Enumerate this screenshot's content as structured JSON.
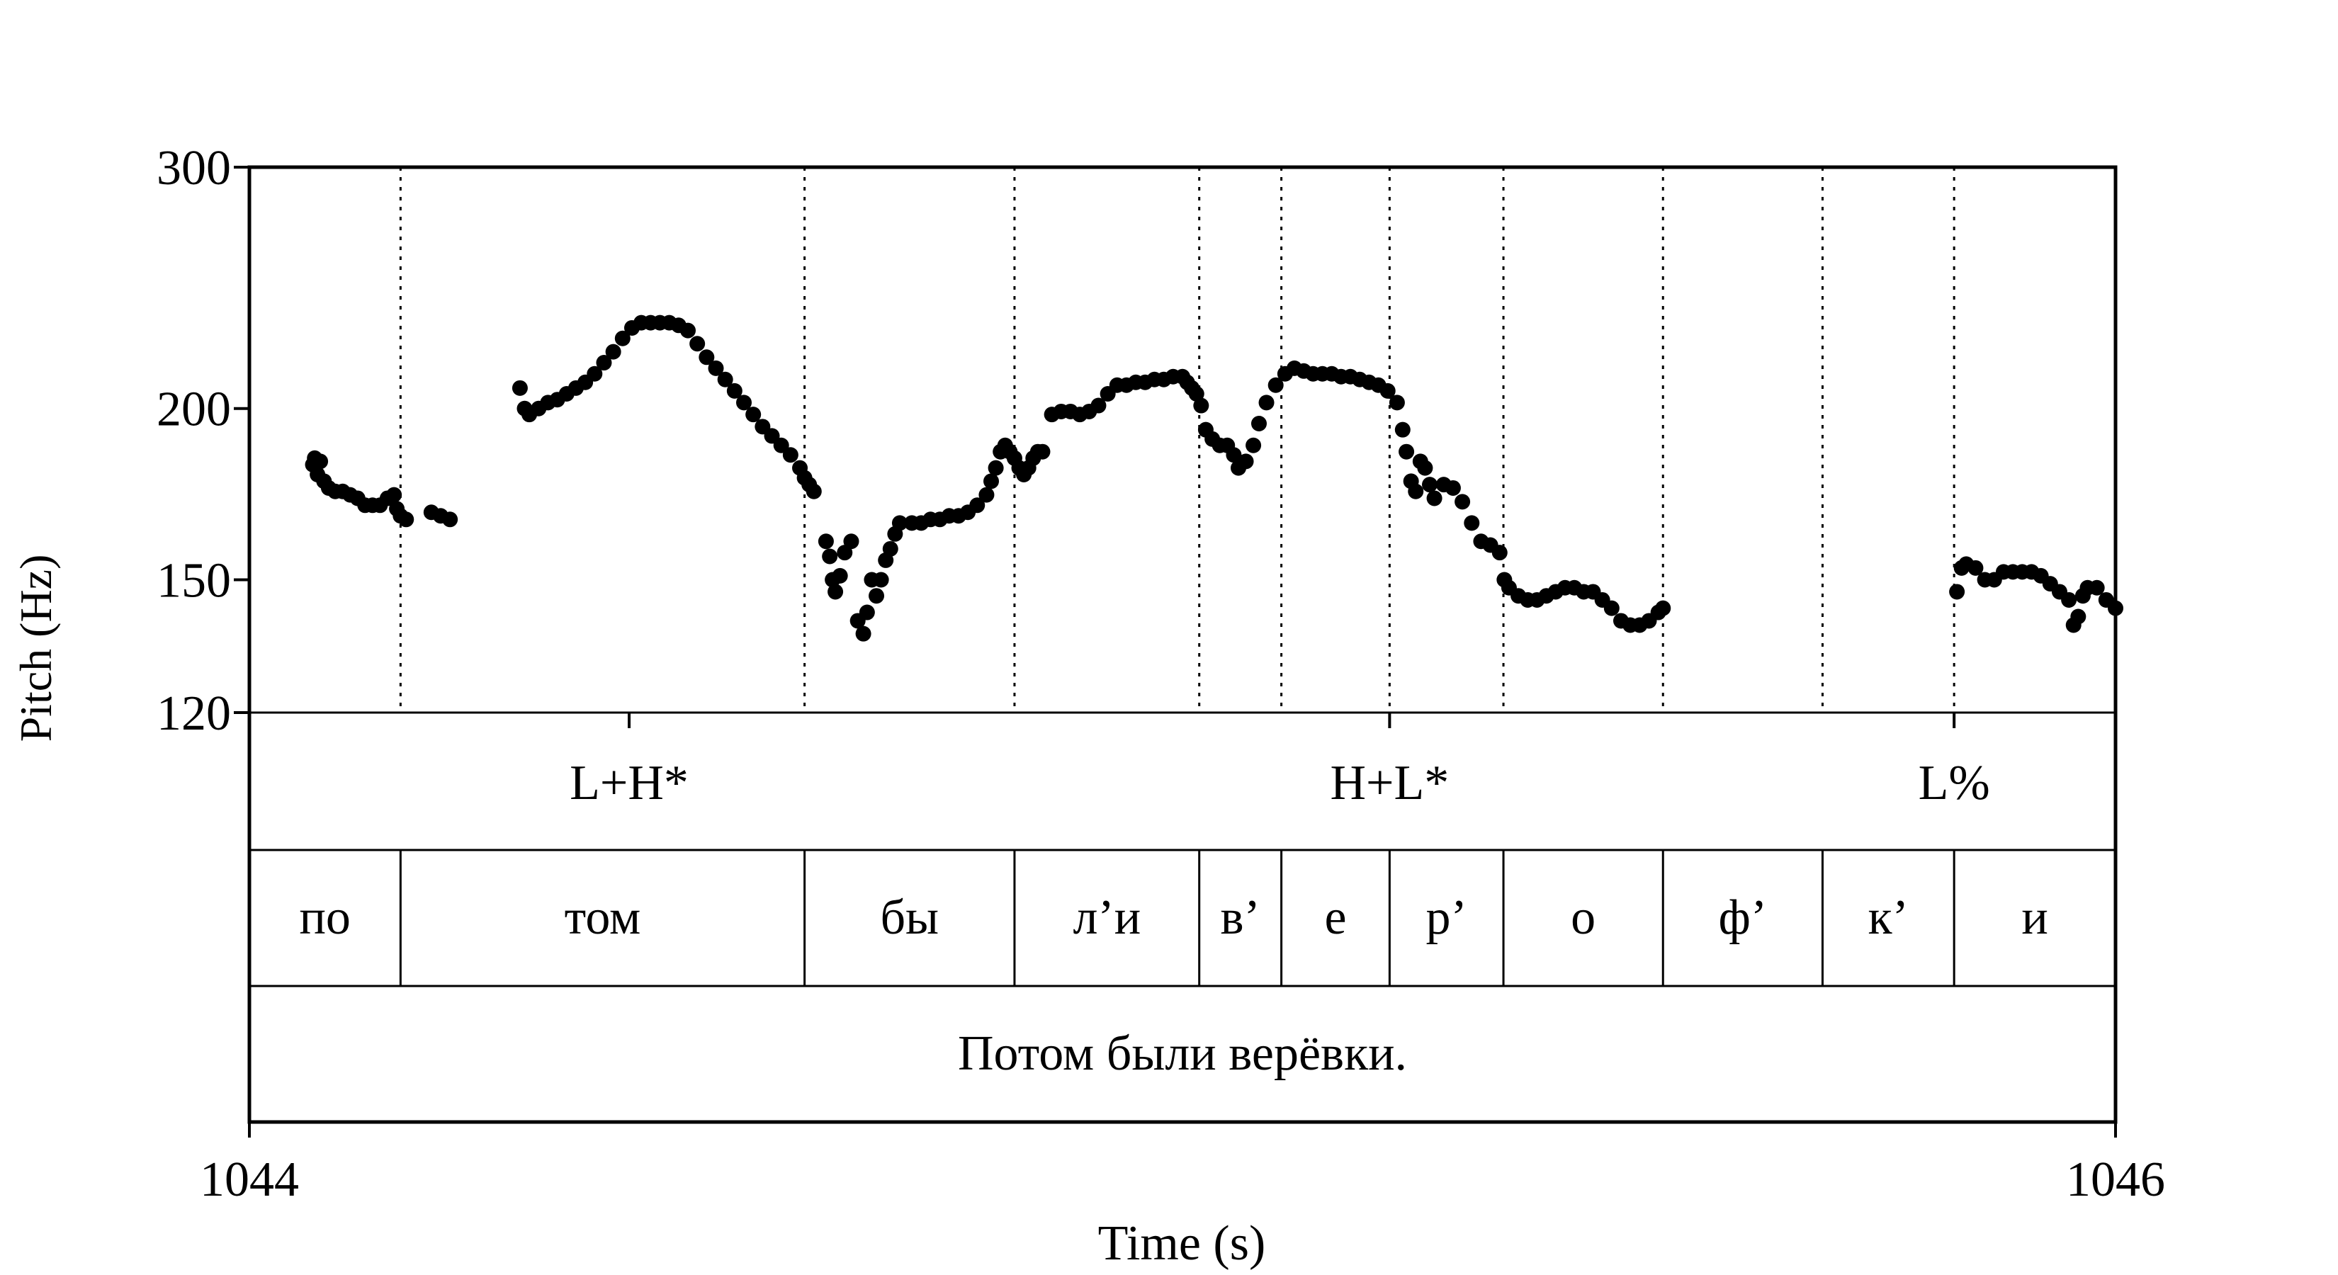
{
  "chart_data": {
    "type": "scatter",
    "title": "",
    "xlabel": "Time (s)",
    "ylabel": "Pitch (Hz)",
    "xlim": [
      1044,
      1046
    ],
    "ylim": [
      120,
      300
    ],
    "y_scale": "log",
    "x_ticks": [
      "1044",
      "1046"
    ],
    "y_ticks": [
      {
        "value": 120,
        "label": "120"
      },
      {
        "value": 150,
        "label": "150"
      },
      {
        "value": 200,
        "label": "200"
      },
      {
        "value": 300,
        "label": "300"
      }
    ],
    "grid": false,
    "boundaries": [
      1044.162,
      1044.595,
      1044.82,
      1045.018,
      1045.106,
      1045.222,
      1045.344,
      1045.515,
      1045.686,
      1045.827
    ],
    "tiers": [
      {
        "name": "tones",
        "labels": [
          {
            "time": 1044.407,
            "text": "L+H*"
          },
          {
            "time": 1045.222,
            "text": "H+L*"
          },
          {
            "time": 1045.827,
            "text": "L%"
          }
        ]
      },
      {
        "name": "segments",
        "intervals": [
          {
            "start": 1044.0,
            "end": 1044.162,
            "text": "по"
          },
          {
            "start": 1044.162,
            "end": 1044.595,
            "text": "том"
          },
          {
            "start": 1044.595,
            "end": 1044.82,
            "text": "бы"
          },
          {
            "start": 1044.82,
            "end": 1045.018,
            "text": "л’и"
          },
          {
            "start": 1045.018,
            "end": 1045.106,
            "text": "в’"
          },
          {
            "start": 1045.106,
            "end": 1045.222,
            "text": "е"
          },
          {
            "start": 1045.222,
            "end": 1045.344,
            "text": "р’"
          },
          {
            "start": 1045.344,
            "end": 1045.515,
            "text": "о"
          },
          {
            "start": 1045.515,
            "end": 1045.686,
            "text": "ф’"
          },
          {
            "start": 1045.686,
            "end": 1045.827,
            "text": "к’"
          },
          {
            "start": 1045.827,
            "end": 1046.0,
            "text": "и"
          }
        ]
      },
      {
        "name": "sentence",
        "intervals": [
          {
            "start": 1044.0,
            "end": 1046.0,
            "text": "Потом были верёвки."
          }
        ]
      }
    ],
    "series": [
      {
        "points": [
          [
            1044.068,
            182
          ],
          [
            1044.07,
            184
          ],
          [
            1044.073,
            179
          ],
          [
            1044.076,
            183
          ],
          [
            1044.08,
            177
          ],
          [
            1044.085,
            175
          ],
          [
            1044.092,
            174
          ],
          [
            1044.1,
            174
          ],
          [
            1044.108,
            173
          ],
          [
            1044.116,
            172
          ],
          [
            1044.124,
            170
          ],
          [
            1044.132,
            170
          ],
          [
            1044.14,
            170
          ],
          [
            1044.148,
            172
          ],
          [
            1044.155,
            173
          ],
          [
            1044.158,
            169
          ],
          [
            1044.162,
            167
          ],
          [
            1044.168,
            166
          ],
          [
            1044.195,
            168
          ],
          [
            1044.205,
            167
          ],
          [
            1044.215,
            166
          ],
          [
            1044.29,
            207
          ],
          [
            1044.295,
            200
          ],
          [
            1044.3,
            198
          ],
          [
            1044.31,
            200
          ],
          [
            1044.32,
            202
          ],
          [
            1044.33,
            203
          ],
          [
            1044.34,
            205
          ],
          [
            1044.35,
            207
          ],
          [
            1044.36,
            209
          ],
          [
            1044.37,
            212
          ],
          [
            1044.38,
            216
          ],
          [
            1044.39,
            220
          ],
          [
            1044.4,
            225
          ],
          [
            1044.41,
            229
          ],
          [
            1044.42,
            231
          ],
          [
            1044.43,
            231
          ],
          [
            1044.44,
            231
          ],
          [
            1044.45,
            231
          ],
          [
            1044.46,
            230
          ],
          [
            1044.47,
            228
          ],
          [
            1044.48,
            223
          ],
          [
            1044.49,
            218
          ],
          [
            1044.5,
            214
          ],
          [
            1044.51,
            210
          ],
          [
            1044.52,
            206
          ],
          [
            1044.53,
            202
          ],
          [
            1044.54,
            198
          ],
          [
            1044.55,
            194
          ],
          [
            1044.56,
            191
          ],
          [
            1044.57,
            188
          ],
          [
            1044.58,
            185
          ],
          [
            1044.59,
            181
          ],
          [
            1044.595,
            178
          ],
          [
            1044.6,
            176
          ],
          [
            1044.605,
            174
          ],
          [
            1044.618,
            160
          ],
          [
            1044.622,
            156
          ],
          [
            1044.625,
            150
          ],
          [
            1044.628,
            147
          ],
          [
            1044.633,
            151
          ],
          [
            1044.638,
            157
          ],
          [
            1044.645,
            160
          ],
          [
            1044.652,
            140
          ],
          [
            1044.658,
            137
          ],
          [
            1044.662,
            142
          ],
          [
            1044.667,
            150
          ],
          [
            1044.672,
            146
          ],
          [
            1044.677,
            150
          ],
          [
            1044.682,
            155
          ],
          [
            1044.687,
            158
          ],
          [
            1044.692,
            162
          ],
          [
            1044.697,
            165
          ],
          [
            1044.71,
            165
          ],
          [
            1044.72,
            165
          ],
          [
            1044.73,
            166
          ],
          [
            1044.74,
            166
          ],
          [
            1044.75,
            167
          ],
          [
            1044.76,
            167
          ],
          [
            1044.77,
            168
          ],
          [
            1044.78,
            170
          ],
          [
            1044.79,
            173
          ],
          [
            1044.795,
            177
          ],
          [
            1044.8,
            181
          ],
          [
            1044.805,
            186
          ],
          [
            1044.81,
            188
          ],
          [
            1044.815,
            186
          ],
          [
            1044.82,
            184
          ],
          [
            1044.825,
            181
          ],
          [
            1044.83,
            179
          ],
          [
            1044.835,
            181
          ],
          [
            1044.84,
            184
          ],
          [
            1044.845,
            186
          ],
          [
            1044.85,
            186
          ],
          [
            1044.86,
            198
          ],
          [
            1044.87,
            199
          ],
          [
            1044.88,
            199
          ],
          [
            1044.89,
            198
          ],
          [
            1044.9,
            199
          ],
          [
            1044.91,
            201
          ],
          [
            1044.92,
            205
          ],
          [
            1044.93,
            208
          ],
          [
            1044.94,
            208
          ],
          [
            1044.95,
            209
          ],
          [
            1044.96,
            209
          ],
          [
            1044.97,
            210
          ],
          [
            1044.98,
            210
          ],
          [
            1044.99,
            211
          ],
          [
            1045.0,
            211
          ],
          [
            1045.005,
            209
          ],
          [
            1045.01,
            207
          ],
          [
            1045.015,
            205
          ],
          [
            1045.02,
            201
          ],
          [
            1045.025,
            193
          ],
          [
            1045.032,
            190
          ],
          [
            1045.04,
            188
          ],
          [
            1045.048,
            188
          ],
          [
            1045.055,
            185
          ],
          [
            1045.06,
            181
          ],
          [
            1045.068,
            183
          ],
          [
            1045.076,
            188
          ],
          [
            1045.082,
            195
          ],
          [
            1045.09,
            202
          ],
          [
            1045.1,
            208
          ],
          [
            1045.11,
            212
          ],
          [
            1045.12,
            214
          ],
          [
            1045.13,
            213
          ],
          [
            1045.14,
            212
          ],
          [
            1045.15,
            212
          ],
          [
            1045.16,
            212
          ],
          [
            1045.17,
            211
          ],
          [
            1045.18,
            211
          ],
          [
            1045.19,
            210
          ],
          [
            1045.2,
            209
          ],
          [
            1045.21,
            208
          ],
          [
            1045.22,
            206
          ],
          [
            1045.23,
            202
          ],
          [
            1045.236,
            193
          ],
          [
            1045.24,
            186
          ],
          [
            1045.245,
            177
          ],
          [
            1045.25,
            174
          ],
          [
            1045.255,
            183
          ],
          [
            1045.26,
            181
          ],
          [
            1045.265,
            176
          ],
          [
            1045.27,
            172
          ],
          [
            1045.28,
            176
          ],
          [
            1045.29,
            175
          ],
          [
            1045.3,
            171
          ],
          [
            1045.31,
            165
          ],
          [
            1045.32,
            160
          ],
          [
            1045.33,
            159
          ],
          [
            1045.34,
            157
          ],
          [
            1045.345,
            150
          ],
          [
            1045.35,
            148
          ],
          [
            1045.36,
            146
          ],
          [
            1045.37,
            145
          ],
          [
            1045.38,
            145
          ],
          [
            1045.39,
            146
          ],
          [
            1045.4,
            147
          ],
          [
            1045.41,
            148
          ],
          [
            1045.42,
            148
          ],
          [
            1045.43,
            147
          ],
          [
            1045.44,
            147
          ],
          [
            1045.45,
            145
          ],
          [
            1045.46,
            143
          ],
          [
            1045.47,
            140
          ],
          [
            1045.48,
            139
          ],
          [
            1045.49,
            139
          ],
          [
            1045.5,
            140
          ],
          [
            1045.51,
            142
          ],
          [
            1045.515,
            143
          ],
          [
            1045.83,
            147
          ],
          [
            1045.835,
            153
          ],
          [
            1045.84,
            154
          ],
          [
            1045.85,
            153
          ],
          [
            1045.86,
            150
          ],
          [
            1045.87,
            150
          ],
          [
            1045.88,
            152
          ],
          [
            1045.89,
            152
          ],
          [
            1045.9,
            152
          ],
          [
            1045.91,
            152
          ],
          [
            1045.92,
            151
          ],
          [
            1045.93,
            149
          ],
          [
            1045.94,
            147
          ],
          [
            1045.95,
            145
          ],
          [
            1045.955,
            139
          ],
          [
            1045.96,
            141
          ],
          [
            1045.965,
            146
          ],
          [
            1045.97,
            148
          ],
          [
            1045.98,
            148
          ],
          [
            1045.99,
            145
          ],
          [
            1046.0,
            143
          ]
        ]
      }
    ]
  }
}
